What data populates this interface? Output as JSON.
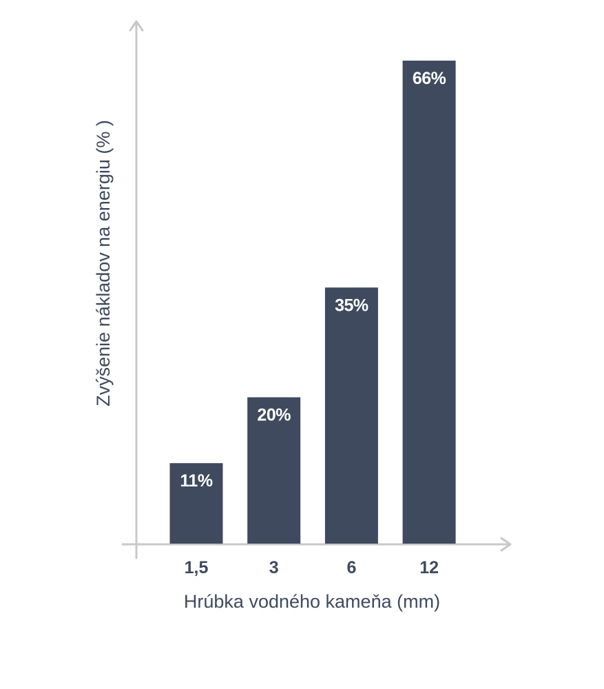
{
  "chart_data": {
    "type": "bar",
    "categories": [
      "1,5",
      "3",
      "6",
      "12"
    ],
    "values": [
      11,
      20,
      35,
      66
    ],
    "data_labels": [
      "11%",
      "20%",
      "35%",
      "66%"
    ],
    "title": "",
    "xlabel": "Hrúbka vodného kameňa (mm)",
    "ylabel": "Zvýšenie nákladov na energiu (% )",
    "ylim": [
      0,
      66
    ],
    "grid": false,
    "legend": "none",
    "colors": {
      "bar": "#3f4a5e",
      "axis": "#c8c8c8",
      "text": "#3f4a5e",
      "bar_label": "#ffffff"
    }
  }
}
